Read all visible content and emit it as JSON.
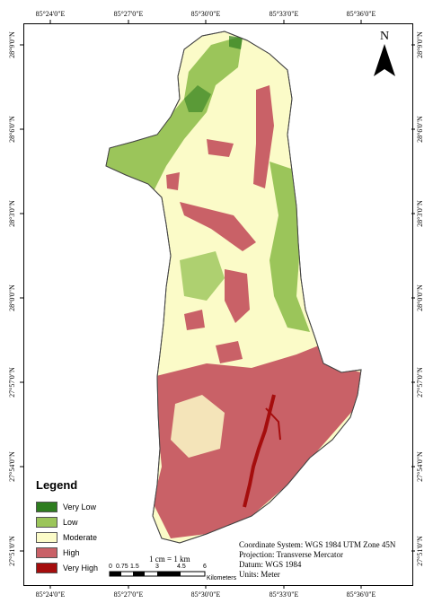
{
  "map": {
    "ticks_top": [
      "85°24'0\"E",
      "85°27'0\"E",
      "85°30'0\"E",
      "85°33'0\"E",
      "85°36'0\"E"
    ],
    "ticks_bottom": [
      "85°24'0\"E",
      "85°27'0\"E",
      "85°30'0\"E",
      "85°33'0\"E",
      "85°36'0\"E"
    ],
    "ticks_left": [
      "28°9'0\"N",
      "28°6'0\"N",
      "28°3'0\"N",
      "28°0'0\"N",
      "27°57'0\"N",
      "27°54'0\"N",
      "27°51'0\"N"
    ],
    "ticks_right": [
      "28°9'0\"N",
      "28°6'0\"N",
      "28°3'0\"N",
      "28°0'0\"N",
      "27°57'0\"N",
      "27°54'0\"N",
      "27°51'0\"N"
    ],
    "north_label": "N"
  },
  "legend": {
    "title": "Legend",
    "items": [
      {
        "label": "Very Low",
        "color": "#2e7d1f"
      },
      {
        "label": "Low",
        "color": "#9bc55a"
      },
      {
        "label": "Moderate",
        "color": "#fbfbc8"
      },
      {
        "label": "High",
        "color": "#c96167"
      },
      {
        "label": "Very High",
        "color": "#a50d0d"
      }
    ]
  },
  "scale": {
    "text": "1 cm = 1 km",
    "numbers": [
      "0",
      "0.75",
      "1.5",
      "3",
      "4.5",
      "6"
    ],
    "unit": "Kilometers"
  },
  "info": {
    "coordinate_system": "Coordinate System: WGS 1984 UTM Zone 45N",
    "projection": "Projection: Transverse Mercator",
    "datum": "Datum: WGS 1984",
    "units": "Units: Meter"
  }
}
